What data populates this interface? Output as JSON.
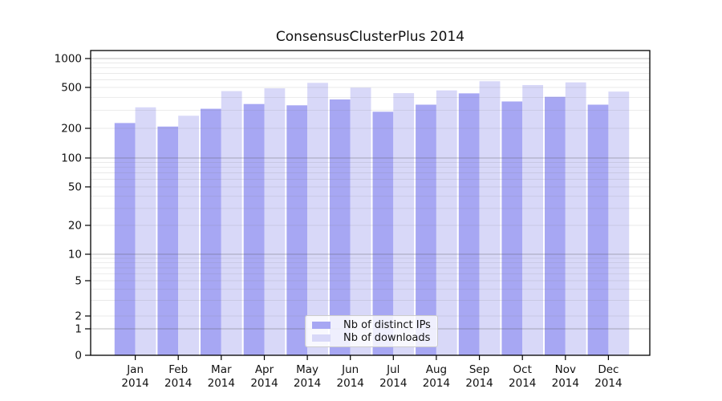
{
  "chart_data": {
    "type": "bar",
    "title": "ConsensusClusterPlus 2014",
    "categories": [
      "Jan",
      "Feb",
      "Mar",
      "Apr",
      "May",
      "Jun",
      "Jul",
      "Aug",
      "Sep",
      "Oct",
      "Nov",
      "Dec"
    ],
    "category_year": "2014",
    "series": [
      {
        "name": "Nb of distinct IPs",
        "color": "#a7a7f3",
        "values": [
          225,
          208,
          310,
          345,
          335,
          382,
          290,
          340,
          438,
          365,
          405,
          340
        ]
      },
      {
        "name": "Nb of downloads",
        "color": "#d8d8f8",
        "values": [
          320,
          265,
          460,
          490,
          558,
          497,
          440,
          468,
          580,
          530,
          565,
          455
        ]
      }
    ],
    "yscale": "symlog",
    "ylim": [
      0,
      1200
    ],
    "y_ticks": [
      0,
      1,
      2,
      5,
      10,
      20,
      50,
      100,
      200,
      500,
      1000
    ],
    "grid": true,
    "legend_position": "lower center",
    "colors": {
      "frame": "#000000",
      "major_grid": "#b3b3b3",
      "minor_grid": "#e9e9e9",
      "text": "#111111",
      "background": "#ffffff"
    }
  }
}
